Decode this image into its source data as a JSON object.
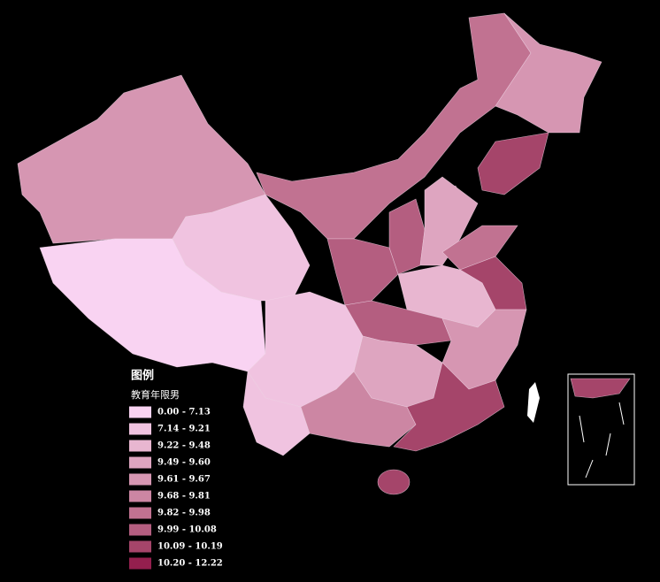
{
  "legend": {
    "title": "图例",
    "subtitle": "教育年限男",
    "items": [
      {
        "label": "0.00 - 7.13",
        "color": "#f9d3f2"
      },
      {
        "label": "7.14 - 9.21",
        "color": "#f0c3e0"
      },
      {
        "label": "9.22 - 9.48",
        "color": "#e8b6d0"
      },
      {
        "label": "9.49 - 9.60",
        "color": "#dea5c0"
      },
      {
        "label": "9.61 - 9.67",
        "color": "#d696b2"
      },
      {
        "label": "9.68 - 9.81",
        "color": "#cc86a3"
      },
      {
        "label": "9.82 - 9.98",
        "color": "#c17291"
      },
      {
        "label": "9.99 - 10.08",
        "color": "#b45e80"
      },
      {
        "label": "10.09 - 10.19",
        "color": "#a5456a"
      },
      {
        "label": "10.20 - 12.22",
        "color": "#941f4e"
      }
    ]
  }
}
